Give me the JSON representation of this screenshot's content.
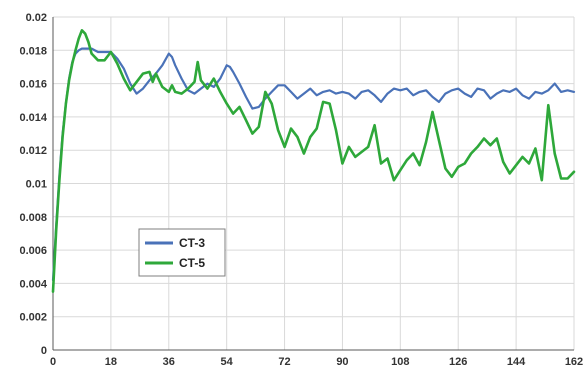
{
  "chart_data": {
    "type": "line",
    "title": "",
    "xlabel": "",
    "ylabel": "",
    "xlim": [
      0,
      162
    ],
    "ylim": [
      0,
      0.02
    ],
    "x_ticks": [
      "0",
      "18",
      "36",
      "54",
      "72",
      "90",
      "108",
      "126",
      "144",
      "162"
    ],
    "y_ticks": [
      "0",
      "0.002",
      "0.004",
      "0.006",
      "0.008",
      "0.01",
      "0.012",
      "0.014",
      "0.016",
      "0.018",
      "0.02"
    ],
    "grid": true,
    "legend": {
      "position": "lower-left",
      "entries": [
        "CT-3",
        "CT-5"
      ]
    },
    "series": [
      {
        "name": "CT-3",
        "color": "#4a72b8",
        "x": [
          0,
          1,
          2,
          3,
          4,
          5,
          6,
          7,
          8,
          9,
          10,
          12,
          14,
          16,
          18,
          20,
          22,
          24,
          26,
          28,
          30,
          32,
          34,
          36,
          37,
          38,
          40,
          42,
          44,
          46,
          48,
          50,
          52,
          54,
          55,
          56,
          58,
          60,
          62,
          64,
          66,
          68,
          70,
          72,
          74,
          76,
          78,
          80,
          82,
          84,
          86,
          88,
          90,
          92,
          94,
          96,
          98,
          100,
          102,
          104,
          106,
          108,
          110,
          112,
          114,
          116,
          118,
          120,
          122,
          124,
          126,
          128,
          130,
          132,
          134,
          136,
          138,
          140,
          142,
          144,
          146,
          148,
          150,
          152,
          154,
          156,
          158,
          160,
          162
        ],
        "y": [
          0.0042,
          0.0075,
          0.0105,
          0.013,
          0.0148,
          0.0163,
          0.0173,
          0.0178,
          0.018,
          0.0181,
          0.0181,
          0.0181,
          0.0179,
          0.0179,
          0.0179,
          0.0175,
          0.0169,
          0.016,
          0.0154,
          0.0157,
          0.0162,
          0.0166,
          0.0171,
          0.0178,
          0.0176,
          0.0171,
          0.0163,
          0.0156,
          0.0154,
          0.0157,
          0.016,
          0.0158,
          0.0163,
          0.0171,
          0.017,
          0.0167,
          0.016,
          0.0152,
          0.0145,
          0.0146,
          0.0151,
          0.0155,
          0.0159,
          0.0159,
          0.0155,
          0.0151,
          0.0154,
          0.0157,
          0.0153,
          0.0155,
          0.0156,
          0.0154,
          0.0155,
          0.0154,
          0.0151,
          0.0155,
          0.0156,
          0.0153,
          0.0149,
          0.0154,
          0.0157,
          0.0156,
          0.0157,
          0.0153,
          0.0155,
          0.0156,
          0.0152,
          0.0149,
          0.0154,
          0.0156,
          0.0157,
          0.0154,
          0.0152,
          0.0157,
          0.0156,
          0.0151,
          0.0154,
          0.0156,
          0.0155,
          0.0157,
          0.0153,
          0.0151,
          0.0155,
          0.0154,
          0.0156,
          0.016,
          0.0155,
          0.0156,
          0.0155
        ]
      },
      {
        "name": "CT-5",
        "color": "#2ea83a",
        "x": [
          0,
          1,
          2,
          3,
          4,
          5,
          6,
          7,
          8,
          9,
          10,
          11,
          12,
          14,
          16,
          18,
          20,
          22,
          24,
          26,
          28,
          30,
          31,
          32,
          34,
          36,
          37,
          38,
          40,
          42,
          44,
          45,
          46,
          48,
          50,
          52,
          54,
          56,
          58,
          60,
          62,
          64,
          66,
          68,
          70,
          72,
          74,
          76,
          78,
          80,
          82,
          84,
          86,
          88,
          90,
          92,
          94,
          96,
          98,
          100,
          102,
          104,
          106,
          108,
          110,
          112,
          114,
          116,
          118,
          120,
          122,
          124,
          126,
          128,
          130,
          132,
          134,
          136,
          138,
          140,
          142,
          144,
          146,
          148,
          150,
          152,
          154,
          156,
          158,
          160,
          162
        ],
        "y": [
          0.0035,
          0.0072,
          0.0102,
          0.0128,
          0.0148,
          0.0162,
          0.0172,
          0.018,
          0.0187,
          0.0192,
          0.019,
          0.0185,
          0.0178,
          0.0174,
          0.0174,
          0.0179,
          0.0172,
          0.0163,
          0.0156,
          0.0161,
          0.0166,
          0.0167,
          0.0161,
          0.0166,
          0.0158,
          0.0155,
          0.0159,
          0.0155,
          0.0154,
          0.0157,
          0.0161,
          0.0173,
          0.0162,
          0.0157,
          0.0163,
          0.0155,
          0.0148,
          0.0142,
          0.0146,
          0.0138,
          0.013,
          0.0134,
          0.0155,
          0.0148,
          0.0132,
          0.0122,
          0.0133,
          0.0128,
          0.0118,
          0.0128,
          0.0133,
          0.0149,
          0.0148,
          0.0132,
          0.0112,
          0.0122,
          0.0116,
          0.0119,
          0.0122,
          0.0135,
          0.0112,
          0.0115,
          0.0102,
          0.0108,
          0.0114,
          0.0118,
          0.0111,
          0.0125,
          0.0143,
          0.0126,
          0.0109,
          0.0104,
          0.011,
          0.0112,
          0.0118,
          0.0122,
          0.0127,
          0.0123,
          0.0127,
          0.0113,
          0.0106,
          0.0111,
          0.0116,
          0.0112,
          0.0121,
          0.0102,
          0.0147,
          0.0118,
          0.0103,
          0.0103,
          0.0107
        ]
      }
    ]
  }
}
